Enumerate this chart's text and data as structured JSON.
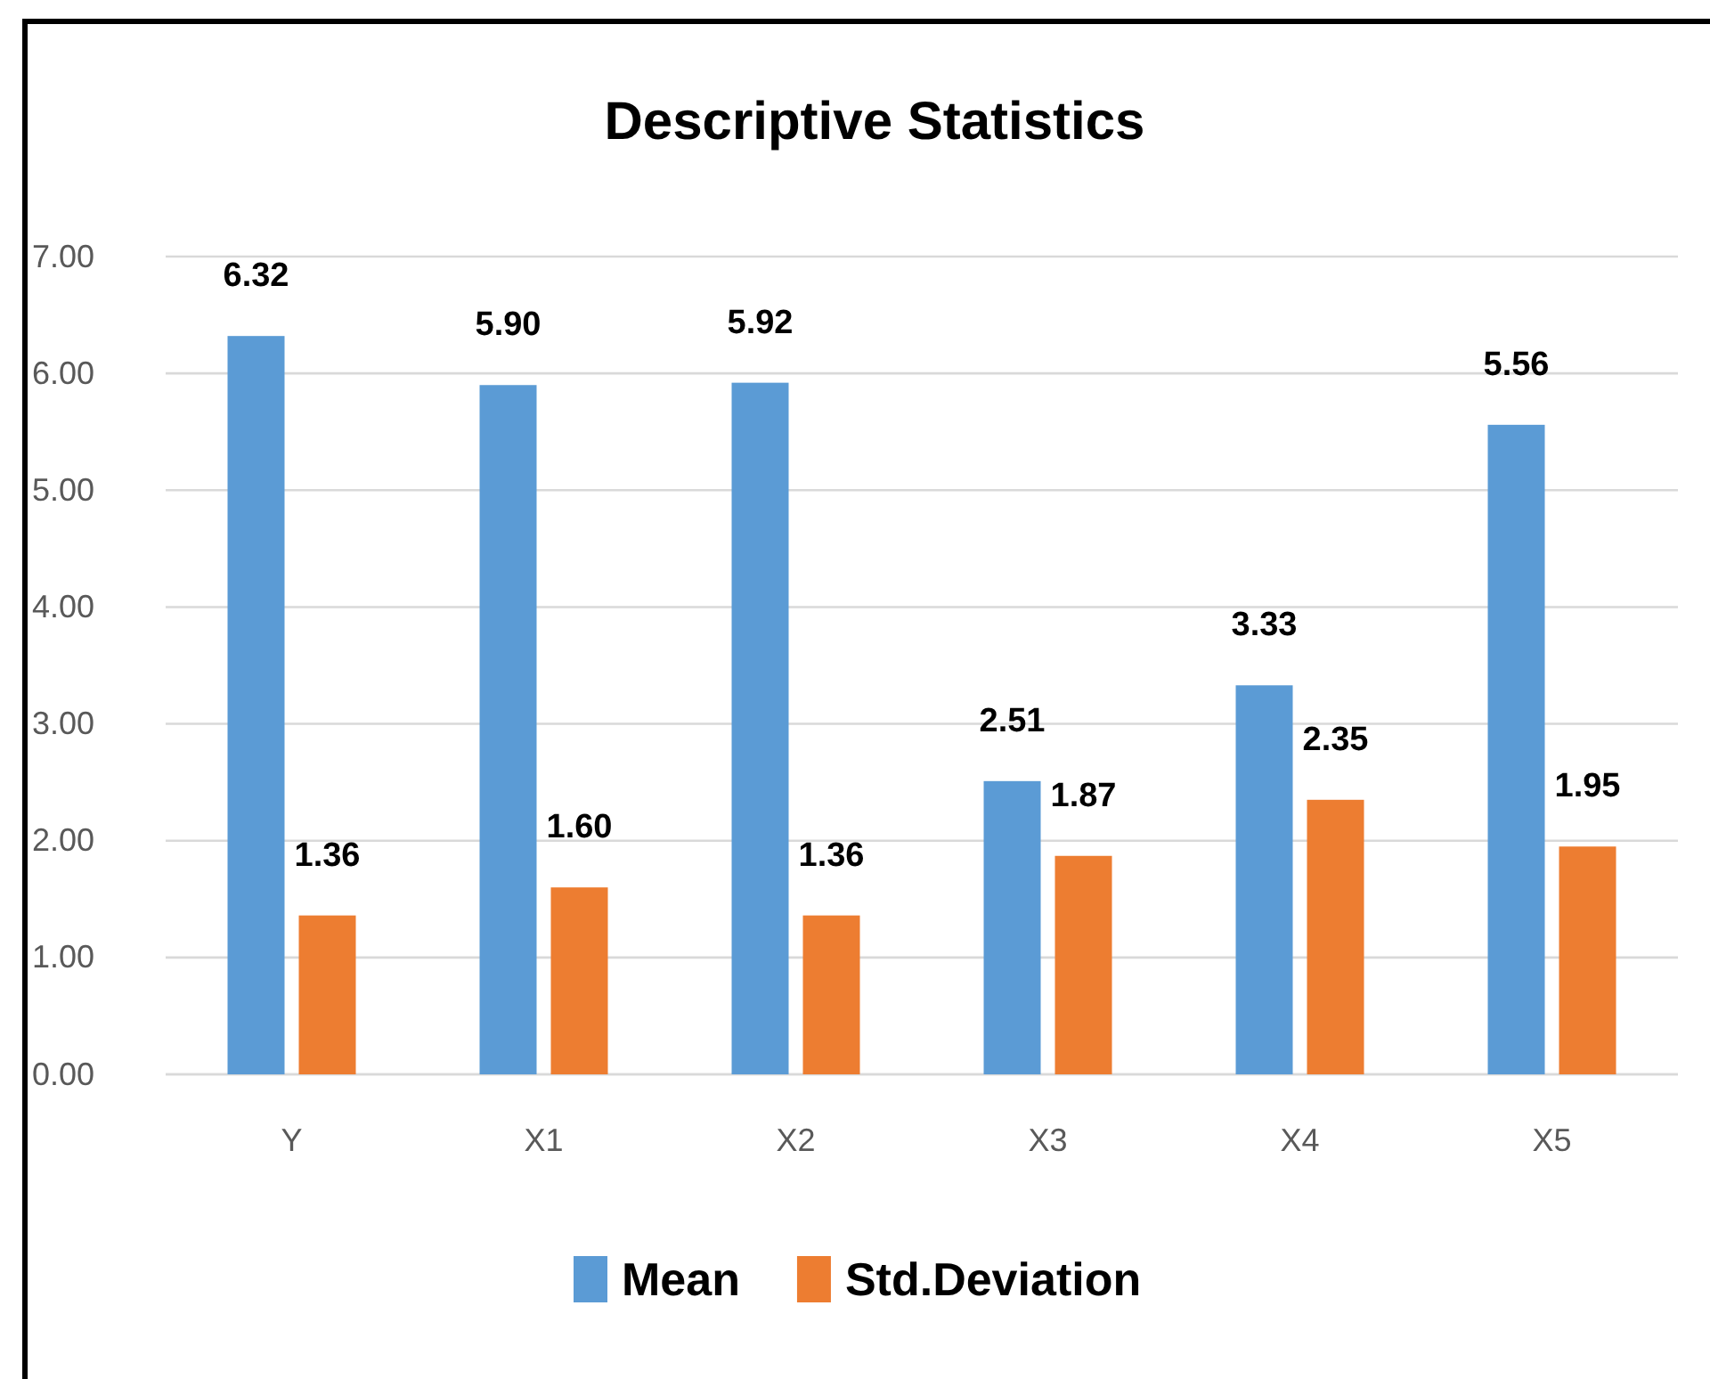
{
  "chart_data": {
    "type": "bar",
    "title": "Descriptive Statistics",
    "categories": [
      "Y",
      "X1",
      "X2",
      "X3",
      "X4",
      "X5"
    ],
    "series": [
      {
        "name": "Mean",
        "color": "#5b9bd5",
        "values": [
          6.32,
          5.9,
          5.92,
          2.51,
          3.33,
          5.56
        ],
        "value_labels": [
          "6.32",
          "5.90",
          "5.92",
          "2.51",
          "3.33",
          "5.56"
        ]
      },
      {
        "name": "Std.Deviation",
        "color": "#ed7d31",
        "values": [
          1.36,
          1.6,
          1.36,
          1.87,
          2.35,
          1.95
        ],
        "value_labels": [
          "1.36",
          "1.60",
          "1.36",
          "1.87",
          "2.35",
          "1.95"
        ]
      }
    ],
    "ylim": [
      0,
      7
    ],
    "yticks": [
      {
        "value": 0,
        "label": "0.00"
      },
      {
        "value": 1,
        "label": "1.00"
      },
      {
        "value": 2,
        "label": "2.00"
      },
      {
        "value": 3,
        "label": "3.00"
      },
      {
        "value": 4,
        "label": "4.00"
      },
      {
        "value": 5,
        "label": "5.00"
      },
      {
        "value": 6,
        "label": "6.00"
      },
      {
        "value": 7,
        "label": "7.00"
      }
    ],
    "grid": "y",
    "legend": "bottom"
  }
}
